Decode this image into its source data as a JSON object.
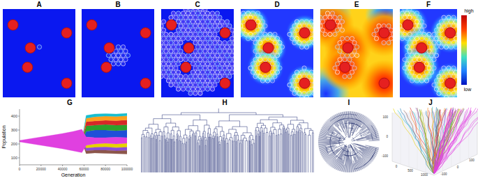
{
  "panel_labels": [
    "A",
    "B",
    "C",
    "D",
    "E",
    "F",
    "G",
    "H",
    "I",
    "J"
  ],
  "colorbar": {
    "top_label": "high",
    "bottom_label": "low"
  },
  "panel_j": {
    "z_ticks": [
      "100",
      "0",
      "-100"
    ],
    "x_ticks": [
      "0",
      "500",
      "1000"
    ],
    "y_ticks": [
      "-100",
      "0",
      "100"
    ]
  },
  "chart_data": {
    "type": "area",
    "xlabel": "Generation",
    "ylabel": "Population",
    "x": [
      0,
      10000,
      20000,
      30000,
      40000,
      50000,
      58000,
      62000,
      70000,
      80000,
      90000,
      100000
    ],
    "xlim": [
      0,
      100000
    ],
    "xticks": [
      0,
      20000,
      40000,
      60000,
      80000,
      100000
    ],
    "ylim": [
      50,
      450
    ],
    "yticks": [
      100,
      200,
      300,
      400
    ],
    "series": [
      {
        "color": "#1f4fd8",
        "low": [
          null,
          null,
          null,
          null,
          null,
          null,
          220,
          250,
          245,
          245,
          248,
          245
        ],
        "high": [
          null,
          null,
          null,
          null,
          null,
          null,
          220,
          290,
          300,
          300,
          295,
          300
        ]
      },
      {
        "color": "#2ca02c",
        "low": [
          null,
          null,
          null,
          null,
          null,
          null,
          220,
          290,
          300,
          300,
          295,
          300
        ],
        "high": [
          null,
          null,
          null,
          null,
          null,
          null,
          220,
          330,
          335,
          340,
          335,
          338
        ]
      },
      {
        "color": "#d62728",
        "low": [
          null,
          null,
          null,
          null,
          null,
          null,
          220,
          330,
          335,
          340,
          335,
          338
        ],
        "high": [
          null,
          null,
          null,
          null,
          null,
          null,
          220,
          360,
          365,
          370,
          368,
          372
        ]
      },
      {
        "color": "#ff9f1c",
        "low": [
          null,
          null,
          null,
          null,
          null,
          null,
          220,
          360,
          365,
          370,
          368,
          372
        ],
        "high": [
          null,
          null,
          null,
          null,
          null,
          null,
          220,
          385,
          395,
          400,
          398,
          402
        ]
      },
      {
        "color": "#17becf",
        "low": [
          null,
          null,
          null,
          null,
          null,
          null,
          220,
          385,
          395,
          400,
          398,
          402
        ],
        "high": [
          null,
          null,
          null,
          null,
          null,
          null,
          220,
          405,
          415,
          418,
          415,
          420
        ]
      },
      {
        "color": "#e6d200",
        "low": [
          null,
          null,
          null,
          null,
          null,
          null,
          220,
          170,
          175,
          178,
          172,
          176
        ],
        "high": [
          null,
          null,
          null,
          null,
          null,
          null,
          220,
          190,
          200,
          205,
          200,
          205
        ]
      },
      {
        "color": "#8c4fd6",
        "low": [
          null,
          null,
          null,
          null,
          null,
          null,
          220,
          150,
          155,
          155,
          150,
          152
        ],
        "high": [
          null,
          null,
          null,
          null,
          null,
          null,
          220,
          170,
          175,
          178,
          172,
          176
        ]
      },
      {
        "color": "#8c564b",
        "low": [
          null,
          null,
          null,
          null,
          null,
          null,
          220,
          130,
          135,
          132,
          130,
          128
        ],
        "high": [
          null,
          null,
          null,
          null,
          null,
          null,
          220,
          150,
          155,
          155,
          150,
          152
        ]
      },
      {
        "color": "#e040e0",
        "low": [
          215,
          202,
          190,
          178,
          165,
          150,
          138,
          190,
          200,
          205,
          200,
          205
        ],
        "high": [
          225,
          238,
          250,
          262,
          275,
          290,
          305,
          250,
          245,
          245,
          248,
          245
        ]
      }
    ]
  }
}
